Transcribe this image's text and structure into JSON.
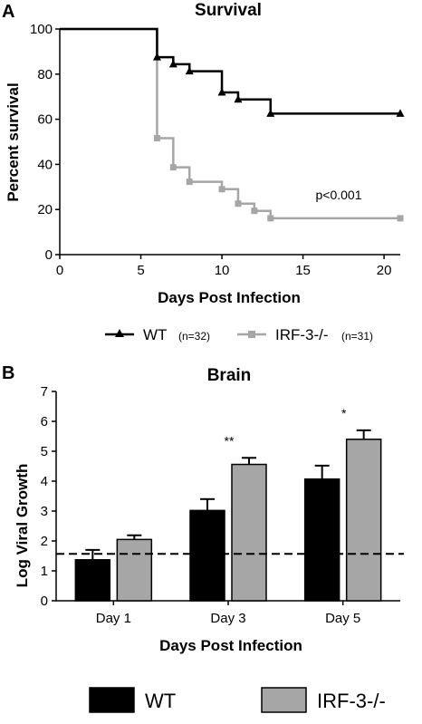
{
  "chart_data": [
    {
      "panel": "A",
      "type": "line",
      "title": "Survival",
      "xlabel": "Days Post Infection",
      "ylabel": "Percent survival",
      "xlim": [
        0,
        21
      ],
      "ylim": [
        0,
        100
      ],
      "xticks": [
        0,
        5,
        10,
        15,
        20
      ],
      "yticks": [
        0,
        20,
        40,
        60,
        80,
        100
      ],
      "annotation": "p<0.001",
      "series": [
        {
          "name": "WT",
          "n_label": "(n=32)",
          "color": "#000000",
          "marker": "triangle",
          "steps": [
            [
              0,
              100
            ],
            [
              6,
              87.5
            ],
            [
              7,
              84.4
            ],
            [
              8,
              81.3
            ],
            [
              10,
              71.9
            ],
            [
              11,
              68.8
            ],
            [
              13,
              62.5
            ],
            [
              21,
              62.5
            ]
          ]
        },
        {
          "name": "IRF-3-/-",
          "n_label": "(n=31)",
          "color": "#a6a6a6",
          "marker": "square",
          "steps": [
            [
              0,
              100
            ],
            [
              6,
              51.6
            ],
            [
              7,
              38.7
            ],
            [
              8,
              32.3
            ],
            [
              10,
              29.0
            ],
            [
              11,
              22.6
            ],
            [
              12,
              19.4
            ],
            [
              13,
              16.1
            ],
            [
              21,
              16.1
            ]
          ]
        }
      ],
      "legend_position": "bottom"
    },
    {
      "panel": "B",
      "type": "bar",
      "title": "Brain",
      "xlabel": "Days Post Infection",
      "ylabel": "Log Viral Growth",
      "ylim": [
        0,
        7
      ],
      "yticks": [
        0,
        1,
        2,
        3,
        4,
        5,
        6,
        7
      ],
      "categories": [
        "Day 1",
        "Day 3",
        "Day 5"
      ],
      "reference_line": 1.57,
      "significance": [
        "",
        "**",
        "*"
      ],
      "series": [
        {
          "name": "WT",
          "color": "#000000",
          "values": [
            1.37,
            3.02,
            4.07
          ],
          "errors": [
            0.33,
            0.38,
            0.45
          ]
        },
        {
          "name": "IRF-3-/-",
          "color": "#a6a6a6",
          "values": [
            2.05,
            4.56,
            5.4
          ],
          "errors": [
            0.14,
            0.22,
            0.3
          ]
        }
      ],
      "legend_position": "bottom"
    }
  ]
}
